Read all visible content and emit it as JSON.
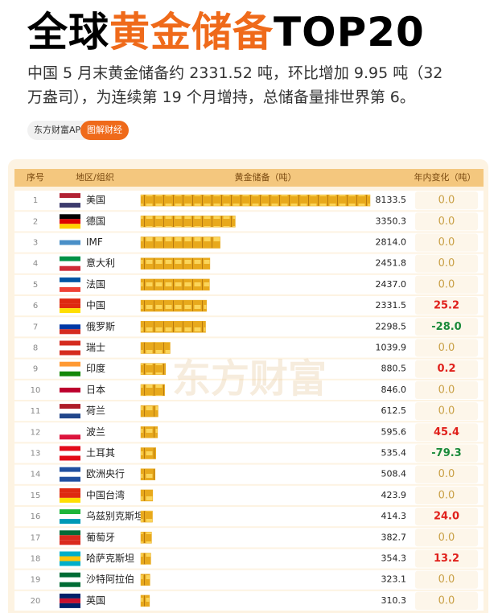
{
  "header": {
    "title_part1": "全球",
    "title_part2": "黄金储备",
    "title_part3": "TOP20",
    "subtitle_lines": [
      "中国 5 月末黄金储备约 2331.52 吨，环比增加 9.95 吨（32",
      "万盎司），为连续第 19 个月增持，总储备量排世界第 6。"
    ],
    "source": "东方财富APP",
    "tag": "图解财经"
  },
  "watermark": "东方财富",
  "chart_data": {
    "type": "table-bar",
    "columns": [
      "序号",
      "地区/组织",
      "黄金储备（吨）",
      "年内变化（吨）"
    ],
    "ranks": [
      1,
      2,
      3,
      4,
      5,
      6,
      7,
      8,
      9,
      10,
      11,
      12,
      13,
      14,
      15,
      16,
      17,
      18,
      19,
      20
    ],
    "categories": [
      "美国",
      "德国",
      "IMF",
      "意大利",
      "法国",
      "中国",
      "俄罗斯",
      "瑞士",
      "印度",
      "日本",
      "荷兰",
      "波兰",
      "土耳其",
      "欧洲央行",
      "中国台湾",
      "乌兹别克斯坦",
      "葡萄牙",
      "哈萨克斯坦",
      "沙特阿拉伯",
      "英国"
    ],
    "values": [
      8133.5,
      3350.3,
      2814.0,
      2451.8,
      2437.0,
      2331.5,
      2298.5,
      1039.9,
      880.5,
      846.0,
      612.5,
      595.6,
      535.4,
      508.4,
      423.9,
      414.3,
      382.7,
      354.3,
      323.1,
      310.3
    ],
    "value_labels": [
      "8133.5",
      "3350.3",
      "2814.0",
      "2451.8",
      "2437.0",
      "2331.5",
      "2298.5",
      "1039.9",
      "880.5",
      "846.0",
      "612.5",
      "595.6",
      "535.4",
      "508.4",
      "423.9",
      "414.3",
      "382.7",
      "354.3",
      "323.1",
      "310.3"
    ],
    "changes": [
      0,
      0,
      0,
      0,
      0,
      25.2,
      -28.0,
      0,
      0.2,
      0,
      0,
      45.4,
      -79.3,
      0,
      0,
      24.0,
      0,
      13.2,
      0,
      0
    ],
    "change_labels": [
      "0.0",
      "0.0",
      "0.0",
      "0.0",
      "0.0",
      "25.2",
      "-28.0",
      "0.0",
      "0.2",
      "0.0",
      "0.0",
      "45.4",
      "-79.3",
      "0.0",
      "0.0",
      "24.0",
      "0.0",
      "13.2",
      "0.0",
      "0.0"
    ],
    "color": "#e8a91c"
  }
}
